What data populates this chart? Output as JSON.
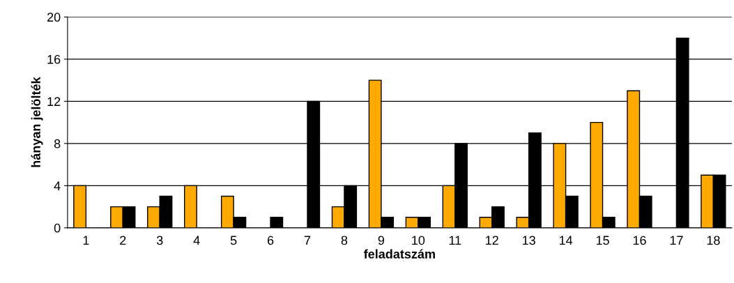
{
  "chart_data": {
    "type": "bar",
    "xlabel": "feladatszám",
    "ylabel": "hányan jelölték",
    "categories": [
      "1",
      "2",
      "3",
      "4",
      "5",
      "6",
      "7",
      "8",
      "9",
      "10",
      "11",
      "12",
      "13",
      "14",
      "15",
      "16",
      "17",
      "18"
    ],
    "series": [
      {
        "color": "#ffaa00",
        "values": [
          4,
          2,
          2,
          4,
          3,
          0,
          0,
          2,
          14,
          1,
          4,
          1,
          1,
          8,
          10,
          13,
          0,
          5
        ]
      },
      {
        "color": "#000000",
        "values": [
          0,
          2,
          3,
          0,
          1,
          1,
          12,
          4,
          1,
          1,
          8,
          2,
          9,
          3,
          1,
          3,
          18,
          5
        ]
      }
    ],
    "ylim": [
      0,
      20
    ],
    "yticks": [
      0,
      4,
      8,
      12,
      16,
      20
    ],
    "grid": "y",
    "legend": false
  }
}
